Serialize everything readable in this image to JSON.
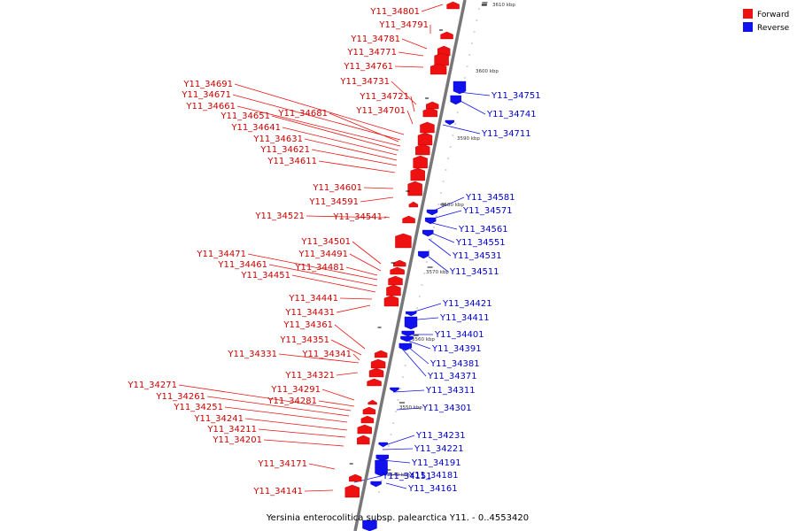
{
  "colors": {
    "forward": "#ee1111",
    "forward_label": "#cc0000",
    "reverse": "#1111ee",
    "reverse_label": "#0000cc",
    "backbone": "#777777"
  },
  "legend": [
    {
      "label": "Forward",
      "strand": "forward"
    },
    {
      "label": "Reverse",
      "strand": "reverse"
    }
  ],
  "caption": "Yersinia enterocolitica subsp. palearctica Y11. - 0..4553420",
  "scale_ticks": [
    {
      "label": "3610 kbp",
      "pos": 3610000
    },
    {
      "label": "3600 kbp",
      "pos": 3600000
    },
    {
      "label": "3590 kbp",
      "pos": 3590000
    },
    {
      "label": "3580 kbp",
      "pos": 3580000
    },
    {
      "label": "3570 kbp",
      "pos": 3570000
    },
    {
      "label": "3560 kbp",
      "pos": 3560000
    },
    {
      "label": "3550 kbp",
      "pos": 3550000
    },
    {
      "label": "3540 kbp",
      "pos": 3540000
    }
  ],
  "genes_forward": [
    "Y11_34801",
    "Y11_34791",
    "Y11_34781",
    "Y11_34771",
    "Y11_34761",
    "Y11_34731",
    "Y11_34721",
    "Y11_34701",
    "Y11_34691",
    "Y11_34671",
    "Y11_34661",
    "Y11_34681",
    "Y11_34651",
    "Y11_34641",
    "Y11_34631",
    "Y11_34621",
    "Y11_34611",
    "Y11_34601",
    "Y11_34591",
    "Y11_34521",
    "Y11_34541",
    "Y11_34501",
    "Y11_34491",
    "Y11_34471",
    "Y11_34461",
    "Y11_34481",
    "Y11_34451",
    "Y11_34441",
    "Y11_34431",
    "Y11_34361",
    "Y11_34351",
    "Y11_34331",
    "Y11_34341",
    "Y11_34321",
    "Y11_34271",
    "Y11_34291",
    "Y11_34261",
    "Y11_34281",
    "Y11_34251",
    "Y11_34241",
    "Y11_34211",
    "Y11_34201",
    "Y11_34171",
    "Y11_34141"
  ],
  "genes_reverse": [
    "Y11_34751",
    "Y11_34741",
    "Y11_34711",
    "Y11_34581",
    "Y11_34571",
    "Y11_34561",
    "Y11_34551",
    "Y11_34531",
    "Y11_34511",
    "Y11_34421",
    "Y11_34411",
    "Y11_34401",
    "Y11_34391",
    "Y11_34381",
    "Y11_34371",
    "Y11_34311",
    "Y11_34301",
    "Y11_34231",
    "Y11_34221",
    "Y11_34191",
    "Y11_34181",
    "Y11_34151",
    "Y11_34161"
  ]
}
